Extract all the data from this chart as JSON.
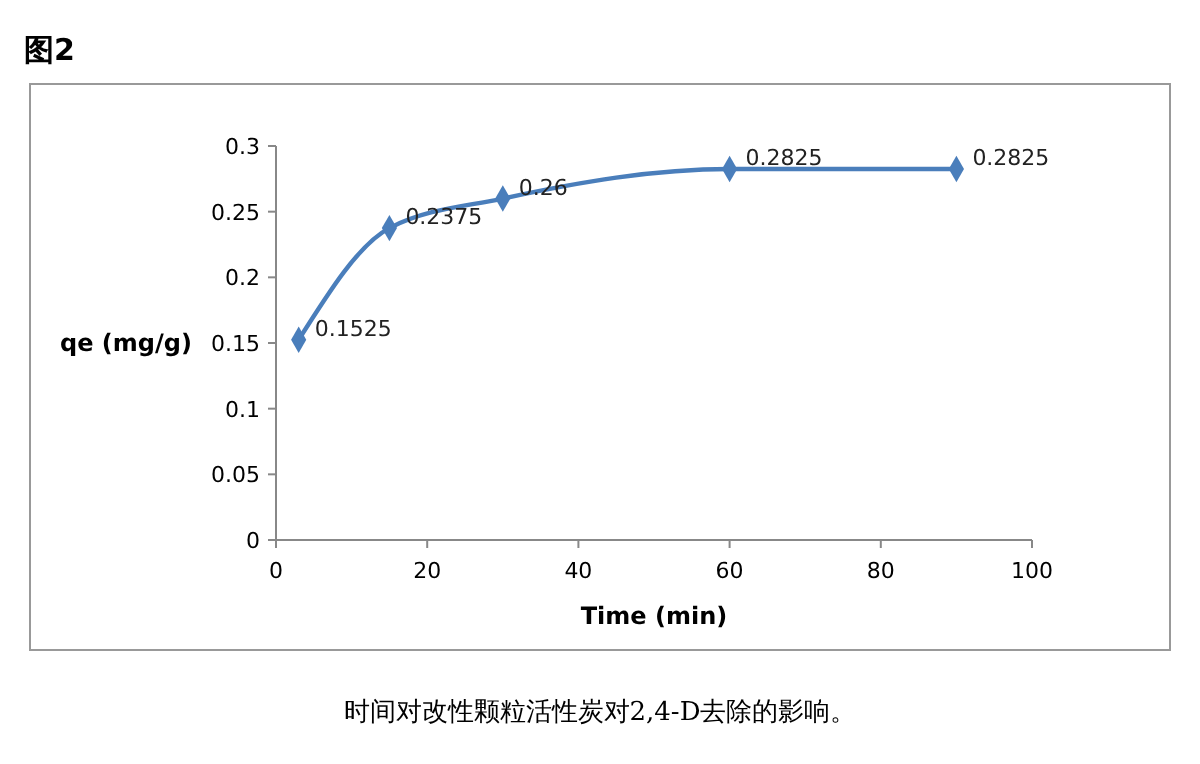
{
  "chart_data": {
    "type": "line",
    "title": "图2",
    "xlabel": "Time (min)",
    "ylabel": "qe (mg/g)",
    "x": [
      3,
      15,
      30,
      60,
      90
    ],
    "series": [
      {
        "color": "#4a7ebb",
        "values": [
          0.1525,
          0.2375,
          0.26,
          0.2825,
          0.2825
        ]
      }
    ],
    "xlim": [
      0,
      100
    ],
    "xticks": [
      0,
      20,
      40,
      60,
      80,
      100
    ],
    "ylim": [
      0,
      0.3
    ],
    "yticks": [
      0,
      0.05,
      0.1,
      0.15,
      0.2,
      0.25,
      0.3
    ],
    "data_labels": true,
    "marker": "diamond",
    "line_style": "solid",
    "annotations": [
      "时间对改性颗粒活性炭对2,4-D去除的影响。"
    ]
  }
}
